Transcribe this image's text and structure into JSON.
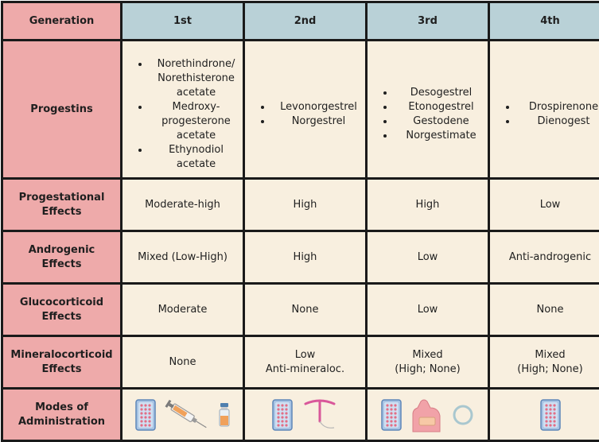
{
  "header": {
    "corner": "Generation",
    "gen1": "1st",
    "gen2": "2nd",
    "gen3": "3rd",
    "gen4": "4th"
  },
  "rows": {
    "progestins": {
      "label": "Progestins",
      "gen1": [
        "Norethindrone/ Norethisterone acetate",
        "Medroxy- progesterone acetate",
        "Ethynodiol acetate"
      ],
      "gen2": [
        "Levonorgestrel",
        "Norgestrel"
      ],
      "gen3": [
        "Desogestrel",
        "Etonogestrel",
        "Gestodene",
        "Norgestimate"
      ],
      "gen4": [
        "Drospirenone",
        "Dienogest"
      ]
    },
    "progestational": {
      "label_line1": "Progestational",
      "label_line2": "Effects",
      "gen1": "Moderate-high",
      "gen2": "High",
      "gen3": "High",
      "gen4": "Low"
    },
    "androgenic": {
      "label_line1": "Androgenic",
      "label_line2": "Effects",
      "gen1": "Mixed (Low-High)",
      "gen2": "High",
      "gen3": "Low",
      "gen4": "Anti-androgenic"
    },
    "glucocorticoid": {
      "label_line1": "Glucocorticoid",
      "label_line2": "Effects",
      "gen1": "Moderate",
      "gen2": "None",
      "gen3": "Low",
      "gen4": "None"
    },
    "mineralocorticoid": {
      "label_line1": "Mineralocorticoid",
      "label_line2": "Effects",
      "gen1": "None",
      "gen2_line1": "Low",
      "gen2_line2": "Anti-mineraloc.",
      "gen3_line1": "Mixed",
      "gen3_line2": "(High; None)",
      "gen4_line1": "Mixed",
      "gen4_line2": "(High; None)"
    },
    "modes": {
      "label_line1": "Modes of",
      "label_line2": "Administration",
      "gen1_icons": [
        "pill-pack-icon",
        "syringe-icon",
        "vial-icon"
      ],
      "gen2_icons": [
        "pill-pack-icon",
        "iud-icon"
      ],
      "gen3_icons": [
        "pill-pack-icon",
        "arm-patch-icon",
        "vaginal-ring-icon"
      ],
      "gen4_icons": [
        "pill-pack-icon"
      ]
    }
  },
  "colors": {
    "header_blue": "#b9d1d7",
    "row_header_pink": "#eeaaaa",
    "cell_cream": "#f8efdf",
    "border": "#1a1a1a"
  }
}
